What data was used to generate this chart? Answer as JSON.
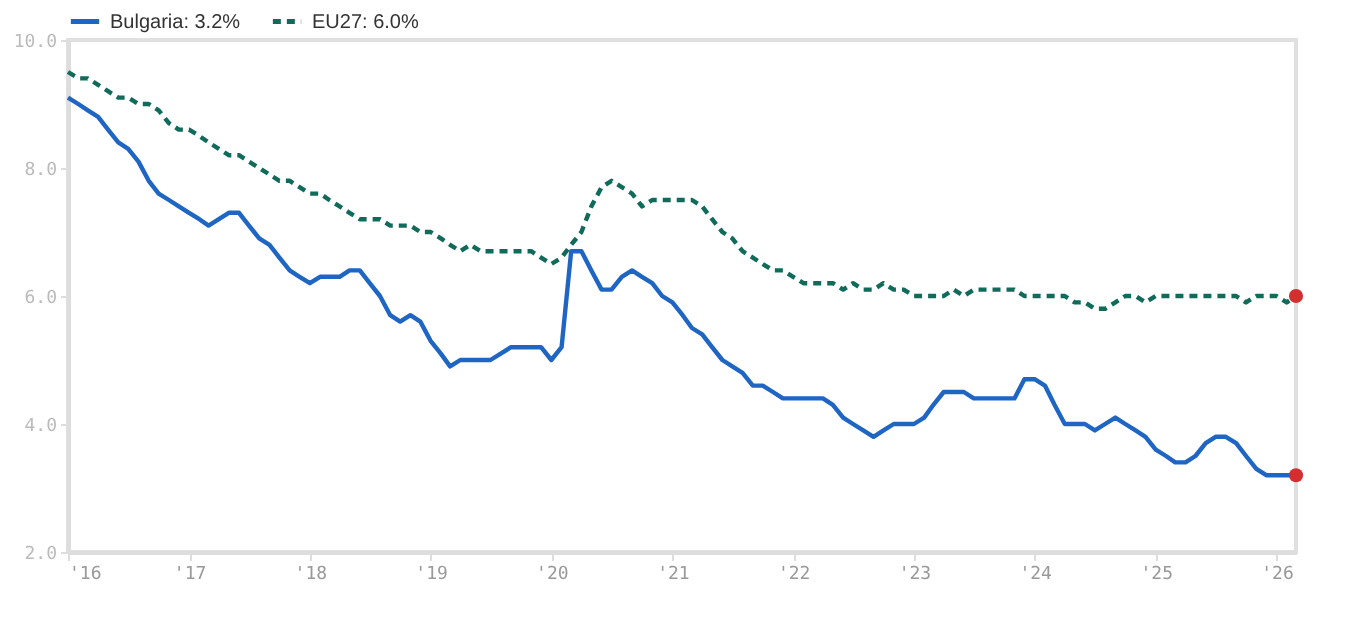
{
  "chart_data": {
    "type": "line",
    "x": [
      "2016-01",
      "2016-02",
      "2016-03",
      "2016-04",
      "2016-05",
      "2016-06",
      "2016-07",
      "2016-08",
      "2016-09",
      "2016-10",
      "2016-11",
      "2016-12",
      "2017-01",
      "2017-02",
      "2017-03",
      "2017-04",
      "2017-05",
      "2017-06",
      "2017-07",
      "2017-08",
      "2017-09",
      "2017-10",
      "2017-11",
      "2017-12",
      "2018-01",
      "2018-02",
      "2018-03",
      "2018-04",
      "2018-05",
      "2018-06",
      "2018-07",
      "2018-08",
      "2018-09",
      "2018-10",
      "2018-11",
      "2018-12",
      "2019-01",
      "2019-02",
      "2019-03",
      "2019-04",
      "2019-05",
      "2019-06",
      "2019-07",
      "2019-08",
      "2019-09",
      "2019-10",
      "2019-11",
      "2019-12",
      "2020-01",
      "2020-02",
      "2020-03",
      "2020-04",
      "2020-05",
      "2020-06",
      "2020-07",
      "2020-08",
      "2020-09",
      "2020-10",
      "2020-11",
      "2020-12",
      "2021-01",
      "2021-02",
      "2021-03",
      "2021-04",
      "2021-05",
      "2021-06",
      "2021-07",
      "2021-08",
      "2021-09",
      "2021-10",
      "2021-11",
      "2021-12",
      "2022-01",
      "2022-02",
      "2022-03",
      "2022-04",
      "2022-05",
      "2022-06",
      "2022-07",
      "2022-08",
      "2022-09",
      "2022-10",
      "2022-11",
      "2022-12",
      "2023-01",
      "2023-02",
      "2023-03",
      "2023-04",
      "2023-05",
      "2023-06",
      "2023-07",
      "2023-08",
      "2023-09",
      "2023-10",
      "2023-11",
      "2023-12",
      "2024-01",
      "2024-02",
      "2024-03",
      "2024-04",
      "2024-05",
      "2024-06",
      "2024-07",
      "2024-08",
      "2024-09",
      "2024-10",
      "2024-11",
      "2024-12",
      "2025-01",
      "2025-02",
      "2025-03",
      "2025-04",
      "2025-05",
      "2025-06",
      "2025-07",
      "2025-08",
      "2025-09",
      "2025-10",
      "2025-11",
      "2025-12",
      "2026-01",
      "2026-02",
      "2026-03"
    ],
    "series": [
      {
        "name": "Bulgaria: 3.2%",
        "color": "#1f66c4",
        "line_style": "solid",
        "values": [
          9.1,
          9.0,
          8.9,
          8.8,
          8.6,
          8.4,
          8.3,
          8.1,
          7.8,
          7.6,
          7.5,
          7.4,
          7.3,
          7.2,
          7.1,
          7.2,
          7.3,
          7.3,
          7.1,
          6.9,
          6.8,
          6.6,
          6.4,
          6.3,
          6.2,
          6.3,
          6.3,
          6.3,
          6.4,
          6.4,
          6.2,
          6.0,
          5.7,
          5.6,
          5.7,
          5.6,
          5.3,
          5.1,
          4.9,
          5.0,
          5.0,
          5.0,
          5.0,
          5.1,
          5.2,
          5.2,
          5.2,
          5.2,
          5.0,
          5.2,
          6.7,
          6.7,
          6.4,
          6.1,
          6.1,
          6.3,
          6.4,
          6.3,
          6.2,
          6.0,
          5.9,
          5.7,
          5.5,
          5.4,
          5.2,
          5.0,
          4.9,
          4.8,
          4.6,
          4.6,
          4.5,
          4.4,
          4.4,
          4.4,
          4.4,
          4.4,
          4.3,
          4.1,
          4.0,
          3.9,
          3.8,
          3.9,
          4.0,
          4.0,
          4.0,
          4.1,
          4.3,
          4.5,
          4.5,
          4.5,
          4.4,
          4.4,
          4.4,
          4.4,
          4.4,
          4.7,
          4.7,
          4.6,
          4.3,
          4.0,
          4.0,
          4.0,
          3.9,
          4.0,
          4.1,
          4.0,
          3.9,
          3.8,
          3.6,
          3.5,
          3.4,
          3.4,
          3.5,
          3.7,
          3.8,
          3.8,
          3.7,
          3.5,
          3.3,
          3.2,
          3.2,
          3.2,
          3.2
        ]
      },
      {
        "name": "EU27: 6.0%",
        "color": "#116b5a",
        "line_style": "dashed",
        "values": [
          9.5,
          9.4,
          9.4,
          9.3,
          9.2,
          9.1,
          9.1,
          9.0,
          9.0,
          8.9,
          8.7,
          8.6,
          8.6,
          8.5,
          8.4,
          8.3,
          8.2,
          8.2,
          8.1,
          8.0,
          7.9,
          7.8,
          7.8,
          7.7,
          7.6,
          7.6,
          7.5,
          7.4,
          7.3,
          7.2,
          7.2,
          7.2,
          7.1,
          7.1,
          7.1,
          7.0,
          7.0,
          6.9,
          6.8,
          6.7,
          6.8,
          6.7,
          6.7,
          6.7,
          6.7,
          6.7,
          6.7,
          6.6,
          6.5,
          6.6,
          6.8,
          7.0,
          7.4,
          7.7,
          7.8,
          7.7,
          7.6,
          7.4,
          7.5,
          7.5,
          7.5,
          7.5,
          7.5,
          7.4,
          7.2,
          7.0,
          6.9,
          6.7,
          6.6,
          6.5,
          6.4,
          6.4,
          6.3,
          6.2,
          6.2,
          6.2,
          6.2,
          6.1,
          6.2,
          6.1,
          6.1,
          6.2,
          6.1,
          6.1,
          6.0,
          6.0,
          6.0,
          6.0,
          6.1,
          6.0,
          6.1,
          6.1,
          6.1,
          6.1,
          6.1,
          6.0,
          6.0,
          6.0,
          6.0,
          6.0,
          5.9,
          5.9,
          5.8,
          5.8,
          5.9,
          6.0,
          6.0,
          5.9,
          6.0,
          6.0,
          6.0,
          6.0,
          6.0,
          6.0,
          6.0,
          6.0,
          6.0,
          5.9,
          6.0,
          6.0,
          6.0,
          5.9,
          6.0
        ]
      },
      {
        "type": "scatter",
        "color": "#d32f2f",
        "marker": "circle",
        "x": [
          "2026-03"
        ],
        "values": [
          3.2
        ]
      },
      {
        "type": "scatter",
        "color": "#d32f2f",
        "marker": "circle",
        "x": [
          "2026-03"
        ],
        "values": [
          6.0
        ]
      }
    ],
    "xlim": [
      "2016-01",
      "2026-03"
    ],
    "xticks": [
      {
        "value": "2016-01",
        "label": "'16"
      },
      {
        "value": "2017-01",
        "label": "'17"
      },
      {
        "value": "2018-01",
        "label": "'18"
      },
      {
        "value": "2019-01",
        "label": "'19"
      },
      {
        "value": "2020-01",
        "label": "'20"
      },
      {
        "value": "2021-01",
        "label": "'21"
      },
      {
        "value": "2022-01",
        "label": "'22"
      },
      {
        "value": "2023-01",
        "label": "'23"
      },
      {
        "value": "2024-01",
        "label": "'24"
      },
      {
        "value": "2025-01",
        "label": "'25"
      },
      {
        "value": "2026-01",
        "label": "'26"
      }
    ],
    "ylim": [
      2,
      10
    ],
    "yticks": [
      {
        "value": 2,
        "label": "2.0"
      },
      {
        "value": 4,
        "label": "4.0"
      },
      {
        "value": 6,
        "label": "6.0"
      },
      {
        "value": 8,
        "label": "8.0"
      },
      {
        "value": 10,
        "label": "10.0"
      }
    ],
    "grid": false,
    "legend": "top left"
  }
}
